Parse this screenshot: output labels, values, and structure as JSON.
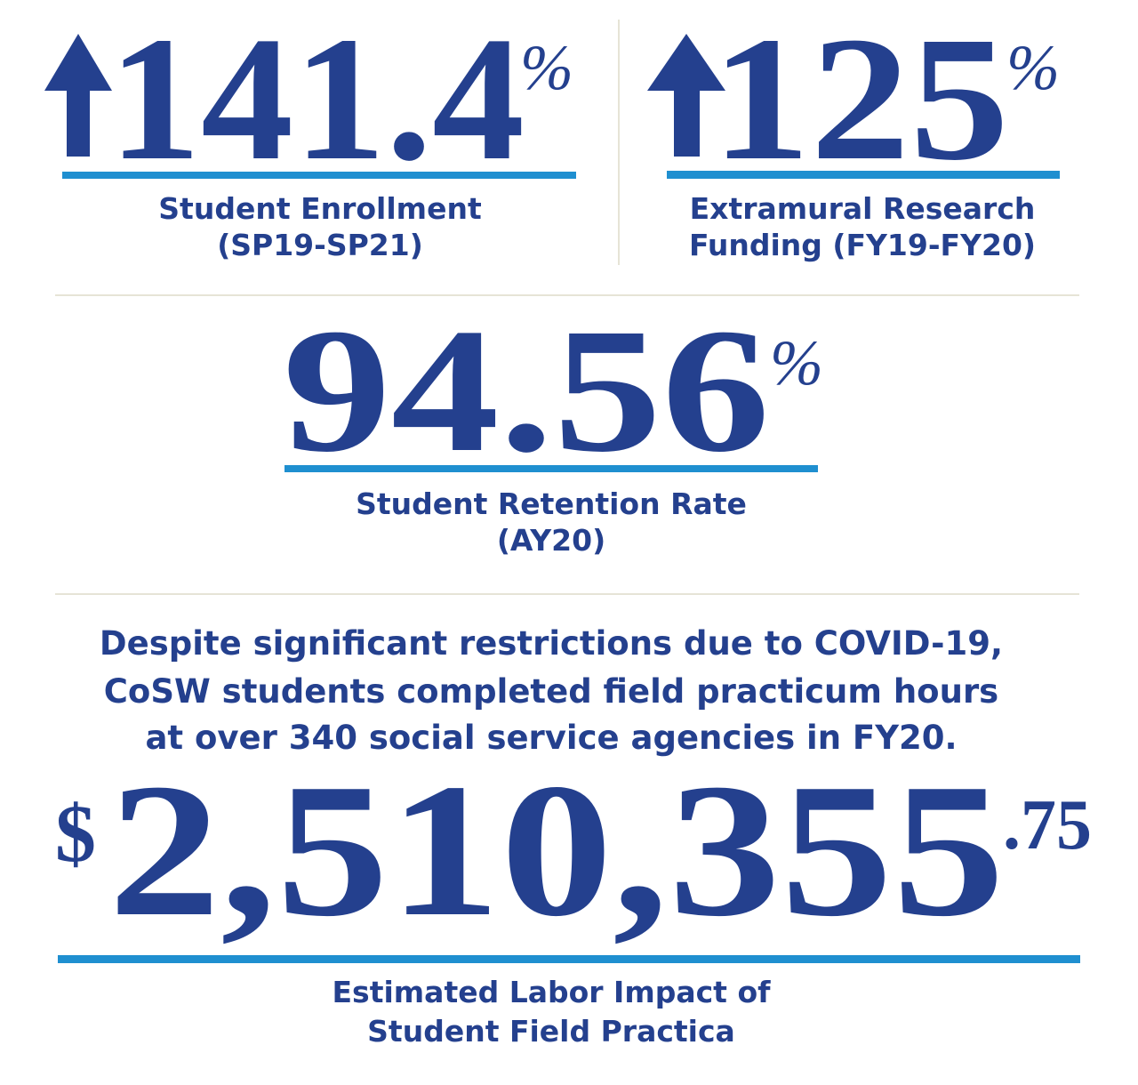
{
  "stats": [
    {
      "value": "141.4",
      "unit": "%",
      "label_lines": [
        "Student Enrollment",
        "(SP19-SP21)"
      ]
    },
    {
      "value": "125",
      "unit": "%",
      "label_lines": [
        "Extramural Research",
        "Funding (FY19-FY20)"
      ]
    },
    {
      "value": "94.56",
      "unit": "%",
      "label_lines": [
        "Student Retention Rate",
        "(AY20)"
      ]
    }
  ],
  "paragraph": {
    "lines": [
      "Despite significant restrictions due to COVID-19,",
      "CoSW students completed field practicum hours",
      "at over 340 social service agencies in FY20."
    ]
  },
  "labor": {
    "currency": "$",
    "value": "2,510,355",
    "cents": ".75",
    "label_lines": [
      "Estimated Labor Impact of",
      "Student Field Practica"
    ]
  }
}
